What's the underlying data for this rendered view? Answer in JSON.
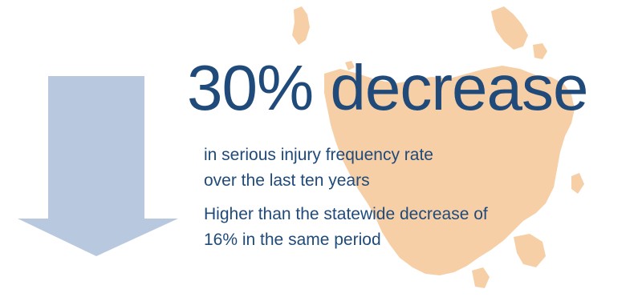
{
  "headline": "30% decrease",
  "description": {
    "line1": "in serious injury frequency rate",
    "line2": "over the last ten years"
  },
  "comparison": {
    "line1": "Higher than the statewide decrease of",
    "line2": "16% in the same period"
  },
  "icons": {
    "arrow": "down-arrow-icon",
    "map": "tasmania-map"
  },
  "colors": {
    "text": "#1f4a7a",
    "arrow": "#b8c8de",
    "map": "#f6cfa6"
  }
}
